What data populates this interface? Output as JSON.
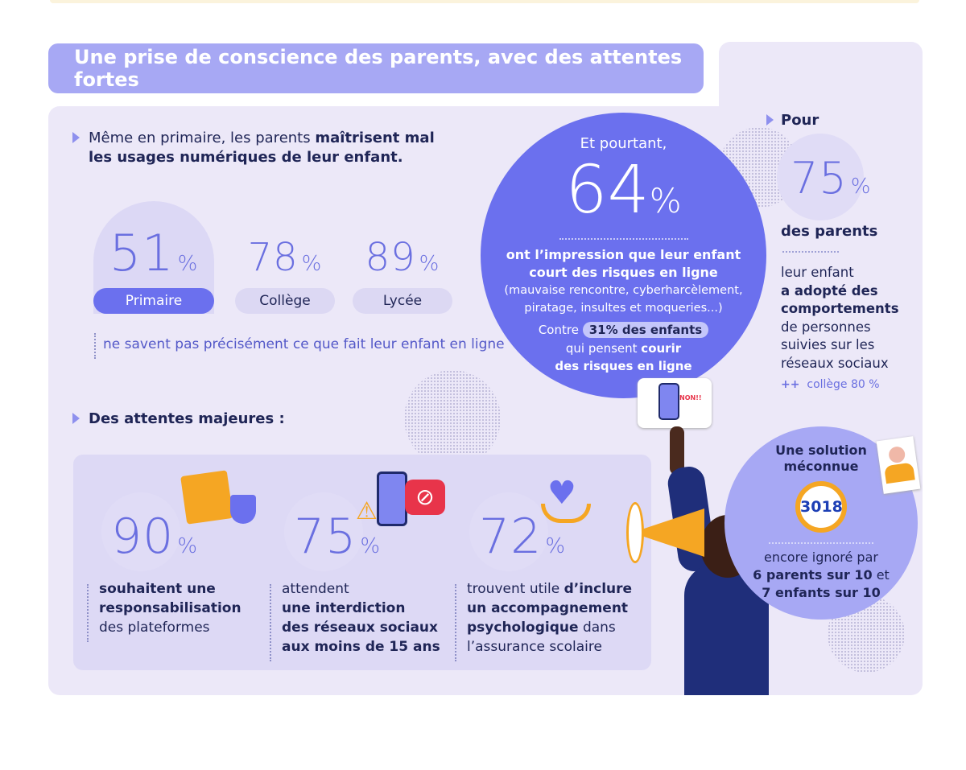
{
  "title": "Une prise de conscience des parents, avec des attentes fortes",
  "section1": {
    "heading_pre": "Même en primaire, les parents ",
    "heading_bold": "maîtrisent mal",
    "heading_line2": "les usages numériques de leur enfant.",
    "stats": [
      {
        "value": "51",
        "unit": "%",
        "label": "Primaire"
      },
      {
        "value": "78",
        "unit": "%",
        "label": "Collège"
      },
      {
        "value": "89",
        "unit": "%",
        "label": "Lycée"
      }
    ],
    "caption": "ne savent pas précisément ce que fait leur enfant en ligne"
  },
  "circle": {
    "intro": "Et pourtant,",
    "value": "64",
    "unit": "%",
    "line1": "ont l’impression que leur enfant",
    "line2": "court des risques en ligne",
    "detail1": "(mauvaise rencontre, cyberharcèlement,",
    "detail2": "piratage, insultes et moqueries...)",
    "contre": "Contre",
    "badge": "31% des enfants",
    "l3a": "qui pensent ",
    "l3b": "courir",
    "l4": "des risques en ligne"
  },
  "right": {
    "pour": "Pour",
    "value": "75",
    "unit": "%",
    "des_parents": "des parents",
    "l1": "leur enfant",
    "l2": "a adopté des",
    "l3": "comportements",
    "l4": "de personnes",
    "l5": "suivies sur les",
    "l6": "réseaux sociaux",
    "plus": "++",
    "college": "collège 80 %"
  },
  "sign_text": "NON!!",
  "section2": {
    "heading": "Des attentes majeures :",
    "cards": [
      {
        "value": "90",
        "unit": "%",
        "lines": [
          {
            "t": "souhaitent une",
            "b": true
          },
          {
            "t": "responsabilisation",
            "b": true
          },
          {
            "t": "des plateformes",
            "b": false
          }
        ]
      },
      {
        "value": "75",
        "unit": "%",
        "lines": [
          {
            "t": "attendent",
            "b": false
          },
          {
            "t": "une interdiction",
            "b": true
          },
          {
            "t": "des réseaux sociaux",
            "b": true
          },
          {
            "t": "aux moins de 15 ans",
            "b": true
          }
        ]
      },
      {
        "value": "72",
        "unit": "%",
        "lines": [
          {
            "t": "trouvent utile ",
            "b": false,
            "t2": "d’inclure"
          },
          {
            "t": "un accompagnement",
            "b": true
          },
          {
            "t": "psychologique",
            "b": true,
            "t2": " dans"
          },
          {
            "t": "l’assurance scolaire",
            "b": false
          }
        ]
      }
    ]
  },
  "solution": {
    "l1": "Une solution",
    "l2": "méconnue",
    "number": "3018",
    "l3": "encore ignoré par",
    "l4a": "6 parents sur 10",
    "l4b": " et",
    "l5": "7 enfants sur 10"
  },
  "colors": {
    "accent": "#6b70ee",
    "title_bar": "#a7a8f4",
    "panel": "#ece8f8",
    "text": "#1f2556",
    "orange": "#f5a623"
  }
}
